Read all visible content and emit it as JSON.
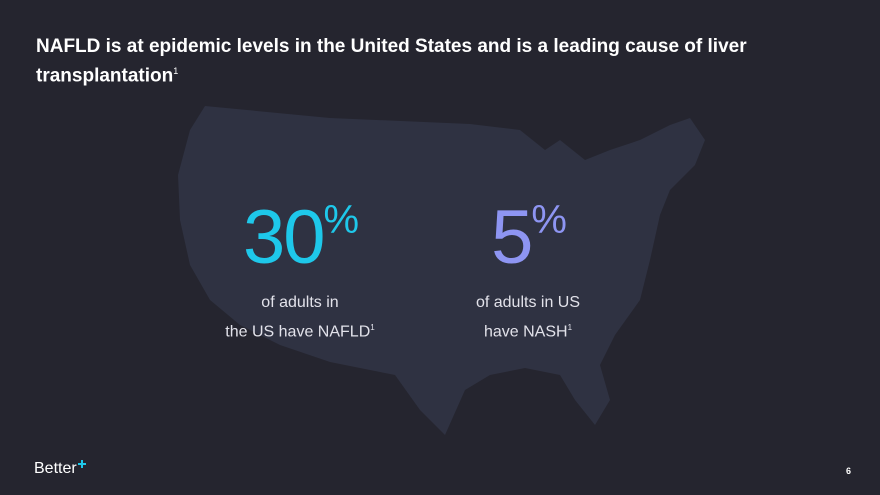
{
  "title": "NAFLD is at epidemic levels in the United States and is a leading cause of liver transplantation",
  "title_footnote": "1",
  "stats": [
    {
      "number": "30",
      "unit": "%",
      "line1": "of adults in",
      "line2": "the US have NAFLD",
      "footnote": "1"
    },
    {
      "number": "5",
      "unit": "%",
      "line1": "of adults in US",
      "line2": "have NASH",
      "footnote": "1"
    }
  ],
  "logo": "Better",
  "page_number": "6"
}
